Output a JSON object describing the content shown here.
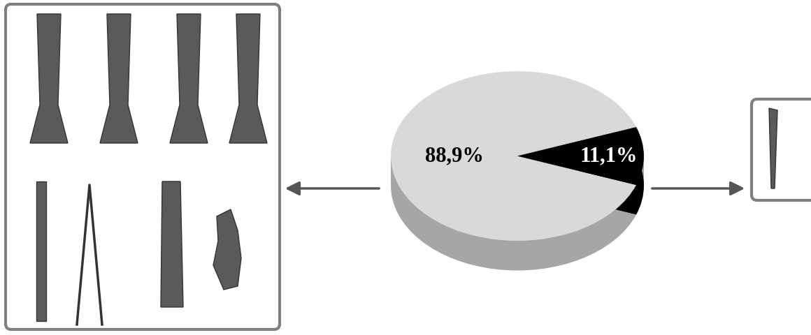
{
  "chart_data": {
    "type": "pie",
    "values": [
      88.9,
      11.1
    ],
    "value_labels": [
      "88,9%",
      "11,1%"
    ],
    "colors": [
      "#d9d9d9",
      "#000000"
    ],
    "data_labels": true
  }
}
